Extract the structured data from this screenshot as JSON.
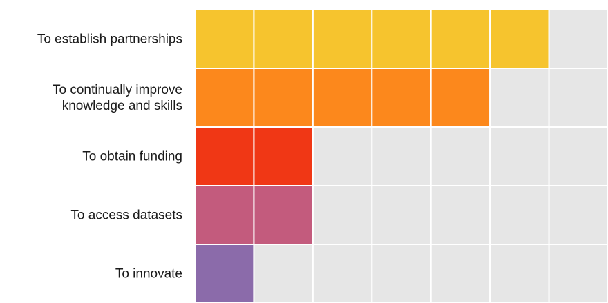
{
  "chart_data": {
    "type": "heatmap",
    "title": "",
    "xlabel": "",
    "ylabel": "",
    "columns": 7,
    "rows": [
      {
        "label": [
          "To establish partnerships"
        ],
        "value": 6,
        "color": "#f6c42e"
      },
      {
        "label": [
          "To continually improve",
          "knowledge and skills"
        ],
        "value": 5,
        "color": "#fc881c"
      },
      {
        "label": [
          "To obtain funding"
        ],
        "value": 2,
        "color": "#f03715"
      },
      {
        "label": [
          "To access datasets"
        ],
        "value": 2,
        "color": "#c35b7d"
      },
      {
        "label": [
          "To innovate"
        ],
        "value": 1,
        "color": "#8b6baa"
      }
    ],
    "empty_color": "#e6e6e6",
    "grid_line_color": "#ffffff",
    "legend": "none",
    "grid": true
  }
}
